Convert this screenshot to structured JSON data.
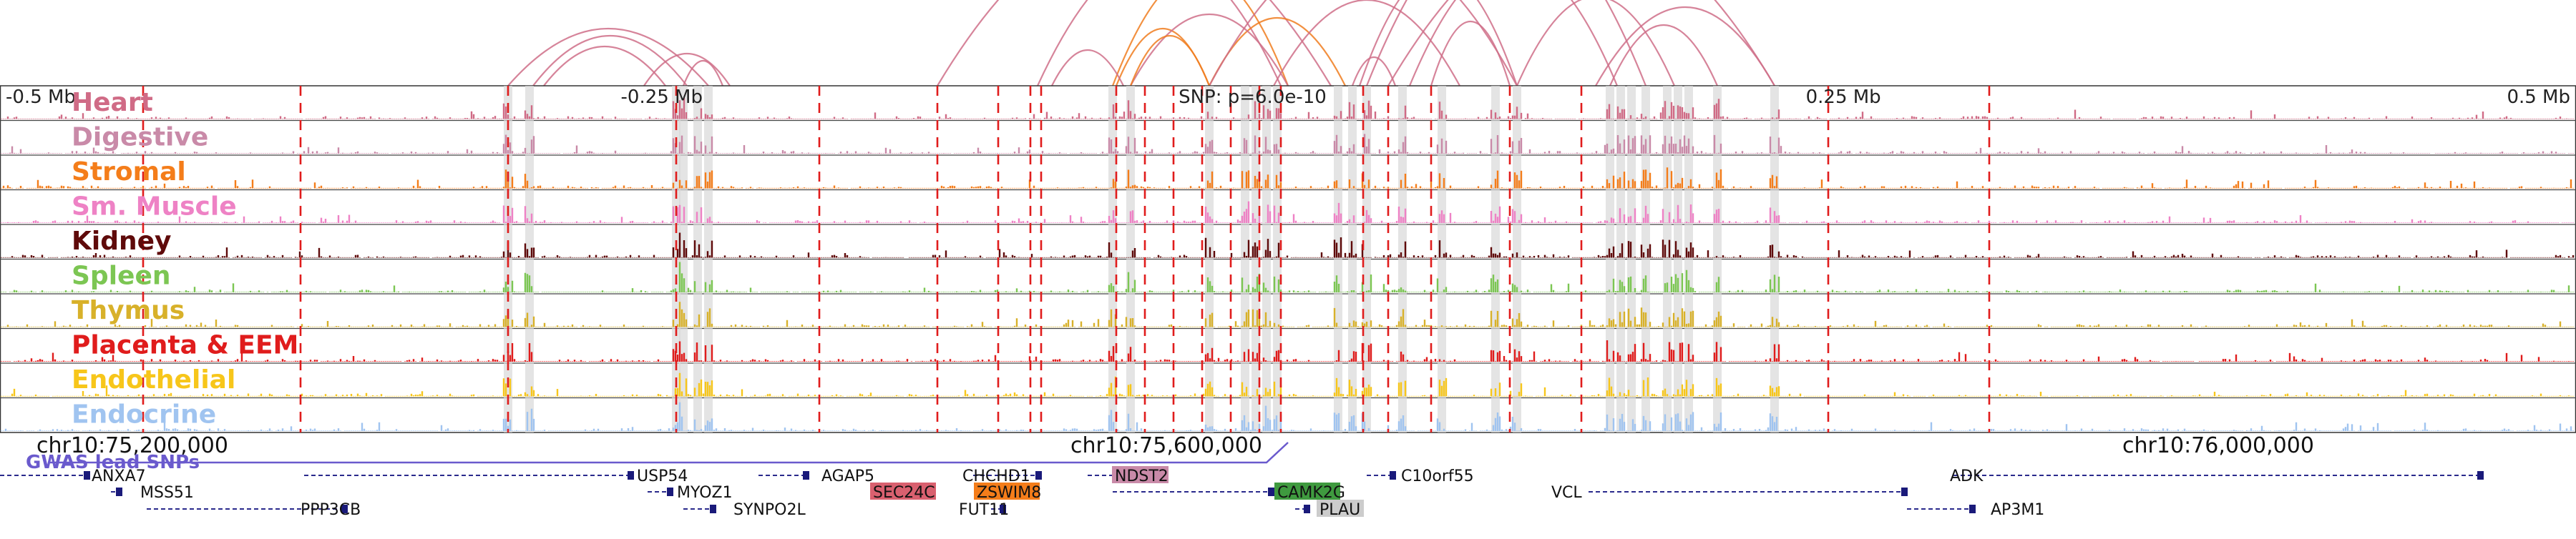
{
  "region": {
    "start": 75070000,
    "end": 76160000,
    "center": 75600000
  },
  "ruler_ticks": [
    {
      "label": "-0.5 Mb",
      "pos": 75100000
    },
    {
      "label": "-0.25 Mb",
      "pos": 75350000
    },
    {
      "label": "SNP: p=6.0e-10",
      "pos": 75600000
    },
    {
      "label": "0.25 Mb",
      "pos": 75850000
    },
    {
      "label": "0.5 Mb",
      "pos": 76100000
    }
  ],
  "tracks": [
    {
      "name": "Heart",
      "color": "#d06b86"
    },
    {
      "name": "Digestive",
      "color": "#c98aa8"
    },
    {
      "name": "Stromal",
      "color": "#f47d1a"
    },
    {
      "name": "Sm. Muscle",
      "color": "#ee82c5"
    },
    {
      "name": "Kidney",
      "color": "#5f0a0a"
    },
    {
      "name": "Spleen",
      "color": "#7cc653"
    },
    {
      "name": "Thymus",
      "color": "#d8b12a"
    },
    {
      "name": "Placenta & EEM",
      "color": "#e01c1c"
    },
    {
      "name": "Endothelial",
      "color": "#f7c61a"
    },
    {
      "name": "Endocrine",
      "color": "#a0c4f0"
    }
  ],
  "gwas_label": "GWAS lead SNPs",
  "coordinate_labels": [
    "chr10:75,200,000",
    "chr10:75,600,000",
    "chr10:76,000,000"
  ],
  "genes": [
    {
      "name": "ANXA7",
      "highlight": ""
    },
    {
      "name": "MSS51",
      "highlight": ""
    },
    {
      "name": "PPP3CB",
      "highlight": ""
    },
    {
      "name": "USP54",
      "highlight": ""
    },
    {
      "name": "MYOZ1",
      "highlight": ""
    },
    {
      "name": "SYNPO2L",
      "highlight": ""
    },
    {
      "name": "AGAP5",
      "highlight": ""
    },
    {
      "name": "SEC24C",
      "highlight": "#d9606f"
    },
    {
      "name": "CHCHD1",
      "highlight": ""
    },
    {
      "name": "ZSWIM8",
      "highlight": "#f47d1a"
    },
    {
      "name": "FUT11",
      "highlight": ""
    },
    {
      "name": "NDST2",
      "highlight": "#c98aa8"
    },
    {
      "name": "CAMK2G",
      "highlight": "#3f9a3f"
    },
    {
      "name": "PLAU",
      "highlight": "#cccccc"
    },
    {
      "name": "C10orf55",
      "highlight": ""
    },
    {
      "name": "VCL",
      "highlight": ""
    },
    {
      "name": "ADK",
      "highlight": ""
    },
    {
      "name": "AP3M1",
      "highlight": ""
    }
  ]
}
